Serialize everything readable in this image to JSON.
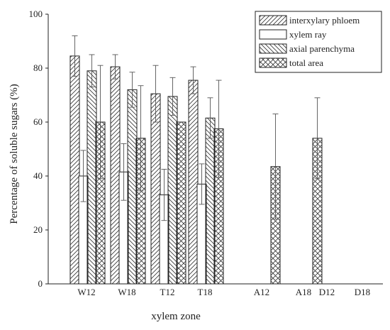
{
  "chart_data": {
    "type": "bar",
    "xlabel": "xylem zone",
    "ylabel": "Percentage of soluble sugars (%)",
    "ylim": [
      0,
      100
    ],
    "yticks": [
      0,
      20,
      40,
      60,
      80,
      100
    ],
    "grid": false,
    "legend_position": "top-right",
    "categories": [
      "W12",
      "W18",
      "T12",
      "T18",
      "A12",
      "A18",
      "D12",
      "D18"
    ],
    "series": [
      {
        "name": "interxylary phloem",
        "pattern": "diagonal-up",
        "values": [
          84.5,
          80.5,
          70.5,
          75.5,
          null,
          null,
          null,
          null
        ],
        "errors": [
          7.5,
          4.5,
          10.5,
          5.0,
          null,
          null,
          null,
          null
        ]
      },
      {
        "name": "xylem ray",
        "pattern": "none",
        "values": [
          40,
          41.5,
          33,
          37,
          null,
          null,
          null,
          null
        ],
        "errors": [
          9.5,
          10.5,
          9.5,
          7.5,
          null,
          null,
          null,
          null
        ]
      },
      {
        "name": "axial parenchyma",
        "pattern": "diagonal-down",
        "values": [
          79,
          72,
          69.5,
          61.5,
          null,
          null,
          null,
          null
        ],
        "errors": [
          6.0,
          6.5,
          7.0,
          7.5,
          null,
          null,
          null,
          null
        ]
      },
      {
        "name": "total area",
        "pattern": "cross-hatch",
        "values": [
          60,
          54,
          60,
          57.5,
          43.5,
          54,
          null,
          null
        ],
        "errors": [
          21,
          19.5,
          0,
          18,
          19.5,
          15,
          null,
          null
        ]
      }
    ],
    "colors": {
      "bar_stroke": "#222222",
      "hatch": "#333333",
      "axis": "#222222",
      "background": "#ffffff"
    }
  }
}
